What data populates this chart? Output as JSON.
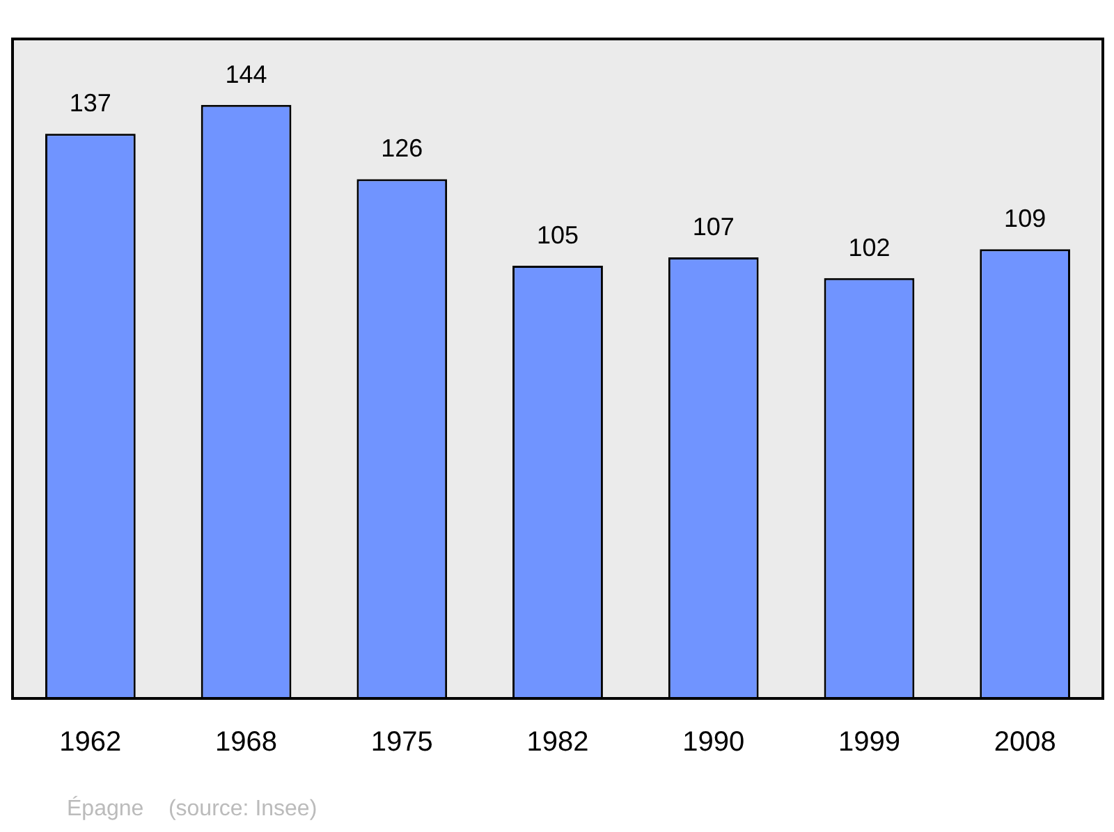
{
  "chart_data": {
    "type": "bar",
    "categories": [
      "1962",
      "1968",
      "1975",
      "1982",
      "1990",
      "1999",
      "2008"
    ],
    "values": [
      137,
      144,
      126,
      105,
      107,
      102,
      109
    ],
    "color": "#7094ff",
    "data_labels": true,
    "grid": false,
    "legend": false,
    "annotations": [
      "Épagne    (source: Insee)"
    ]
  }
}
